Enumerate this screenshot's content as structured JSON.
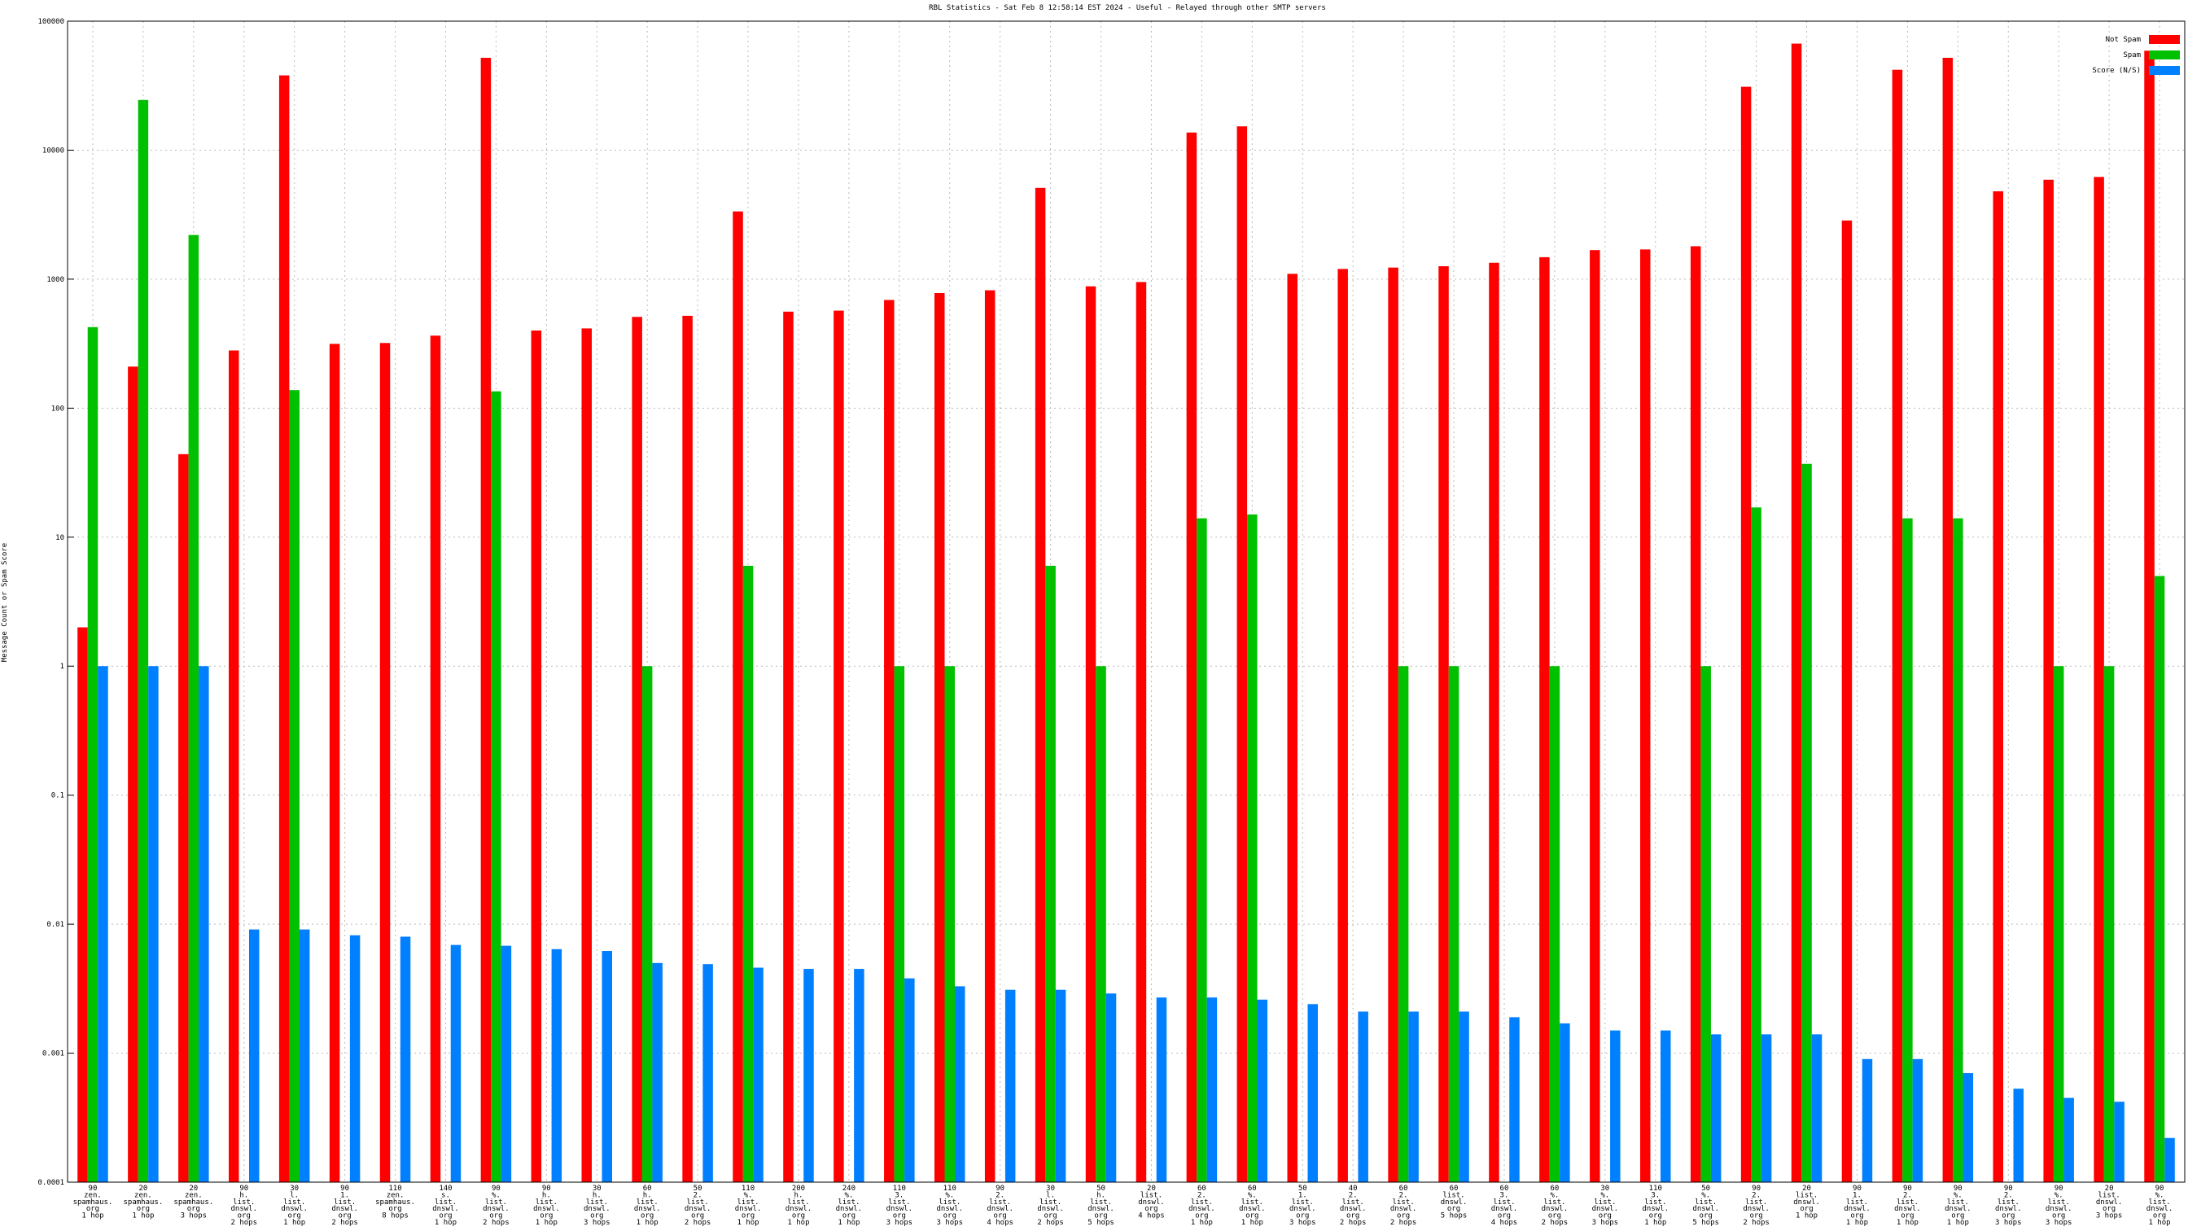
{
  "chart_data": {
    "type": "bar",
    "title": "RBL Statistics - Sat Feb  8 12:58:14 EST 2024 - Useful - Relayed through other SMTP servers",
    "y_label": "Message Count or Spam Score",
    "log_scale": true,
    "grid": true,
    "legend_position": "top-right",
    "ylim": [
      0.0001,
      100000
    ],
    "yticks": [
      0.0001,
      0.001,
      0.01,
      0.1,
      1,
      10,
      100,
      1000,
      10000,
      100000
    ],
    "categories": [
      "90\nzen.\nspamhaus.\norg\n1 hop",
      "20\nzen.\nspamhaus.\norg\n1 hop",
      "20\nzen.\nspamhaus.\norg\n3 hops",
      "90\nh.\nlist.\ndnswl.\norg\n2 hops",
      "30\nl.\nlist.\ndnswl.\norg\n1 hop",
      "90\n1.\nlist.\ndnswl.\norg\n2 hops",
      "110\nzen.\nspamhaus.\norg\n8 hops",
      "140\ns.\nlist.\ndnswl.\norg\n1 hop",
      "90\n%.\nlist.\ndnswl.\norg\n2 hops",
      "90\nh.\nlist.\ndnswl.\norg\n1 hop",
      "30\nh.\nlist.\ndnswl.\norg\n3 hops",
      "60\nh.\nlist.\ndnswl.\norg\n1 hop",
      "50\n2.\nlist.\ndnswl.\norg\n2 hops",
      "110\n%.\nlist.\ndnswl.\norg\n1 hop",
      "200\nh.\nlist.\ndnswl.\norg\n1 hop",
      "240\n%.\nlist.\ndnswl.\norg\n1 hop",
      "110\n3.\nlist.\ndnswl.\norg\n3 hops",
      "110\n%.\nlist.\ndnswl.\norg\n3 hops",
      "90\n2.\nlist.\ndnswl.\norg\n4 hops",
      "30\nl.\nlist.\ndnswl.\norg\n2 hops",
      "50\nh.\nlist.\ndnswl.\norg\n5 hops",
      "20\nlist.\ndnswl.\norg\n4 hops",
      "60\n2.\nlist.\ndnswl.\norg\n1 hop",
      "60\n%.\nlist.\ndnswl.\norg\n1 hop",
      "50\n1.\nlist.\ndnswl.\norg\n3 hops",
      "40\n2.\nlist.\ndnswl.\norg\n2 hops",
      "60\n2.\nlist.\ndnswl.\norg\n2 hops",
      "60\nlist.\ndnswl.\norg\n5 hops",
      "60\n3.\nlist.\ndnswl.\norg\n4 hops",
      "60\n%.\nlist.\ndnswl.\norg\n2 hops",
      "30\n%.\nlist.\ndnswl.\norg\n3 hops",
      "110\n3.\nlist.\ndnswl.\norg\n1 hop",
      "50\n%.\nlist.\ndnswl.\norg\n5 hops",
      "90\n2.\nlist.\ndnswl.\norg\n2 hops",
      "20\nlist.\ndnswl.\norg\n1 hop",
      "90\n1.\nlist.\ndnswl.\norg\n1 hop",
      "90\n2.\nlist.\ndnswl.\norg\n1 hop",
      "90\n%.\nlist.\ndnswl.\norg\n1 hop",
      "90\n2.\nlist.\ndnswl.\norg\n3 hops",
      "90\n%.\nlist.\ndnswl.\norg\n3 hops",
      "20\nlist.\ndnswl.\norg\n3 hops",
      "90\n%.\nlist.\ndnswl.\norg\n1 hop"
    ],
    "series": [
      {
        "name": "Not Spam",
        "color": "#ff0000",
        "values": [
          2,
          210,
          44,
          280,
          38000,
          315,
          320,
          365,
          52000,
          400,
          415,
          510,
          520,
          3350,
          560,
          570,
          690,
          780,
          820,
          5100,
          880,
          950,
          13700,
          15300,
          1100,
          1200,
          1230,
          1260,
          1340,
          1480,
          1680,
          1700,
          1800,
          31000,
          67000,
          2850,
          42000,
          52000,
          4800,
          5900,
          6200,
          59000
        ]
      },
      {
        "name": "Spam",
        "color": "#00c000",
        "values": [
          425,
          24500,
          2200,
          null,
          138,
          null,
          null,
          null,
          135,
          null,
          null,
          1,
          null,
          6,
          null,
          null,
          1,
          1,
          null,
          6,
          1,
          null,
          14,
          15,
          null,
          null,
          1,
          1,
          null,
          1,
          null,
          null,
          1,
          17,
          37,
          null,
          14,
          14,
          null,
          1,
          1,
          5
        ]
      },
      {
        "name": "Score (N/S)",
        "color": "#0080ff",
        "values": [
          1,
          1,
          1,
          0.0091,
          0.0091,
          0.0082,
          0.008,
          0.0069,
          0.0068,
          0.0064,
          0.0062,
          0.005,
          0.0049,
          0.0046,
          0.0045,
          0.0045,
          0.0038,
          0.0033,
          0.0031,
          0.0031,
          0.0029,
          0.0027,
          0.0027,
          0.0026,
          0.0024,
          0.0021,
          0.0021,
          0.0021,
          0.0019,
          0.0017,
          0.0015,
          0.0015,
          0.0014,
          0.0014,
          0.0014,
          0.0009,
          0.0009,
          0.0007,
          0.00053,
          0.00045,
          0.00042,
          0.00022
        ]
      }
    ]
  }
}
